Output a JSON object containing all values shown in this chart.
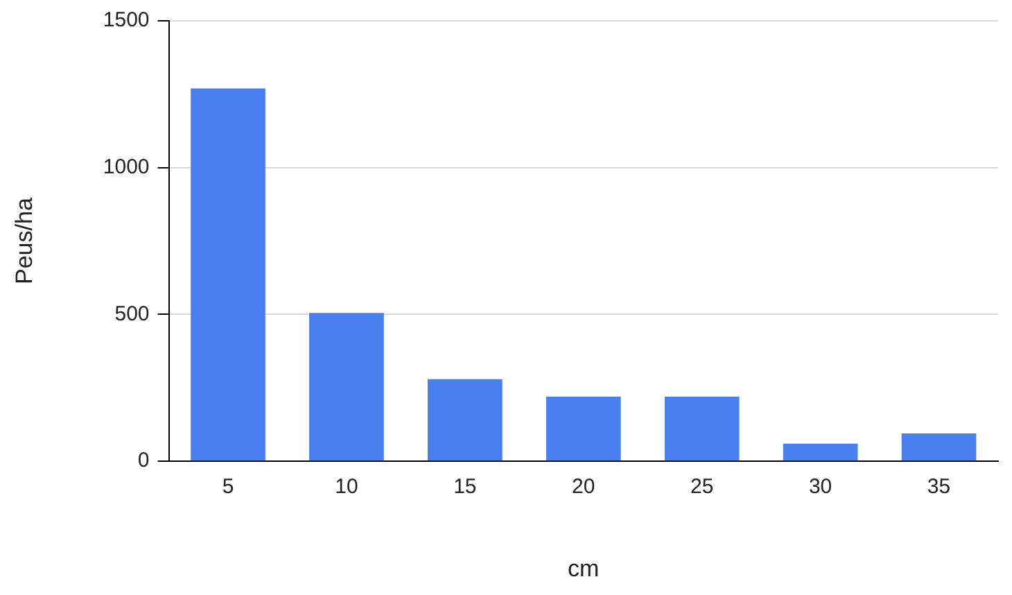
{
  "chart_data": {
    "type": "bar",
    "xlabel": "cm",
    "ylabel": "Peus/ha",
    "categories": [
      "5",
      "10",
      "15",
      "20",
      "25",
      "30",
      "35"
    ],
    "values": [
      1270,
      505,
      280,
      220,
      220,
      60,
      95
    ],
    "color": "#4a7ff0",
    "ylim": [
      0,
      1500
    ],
    "yticks": [
      0,
      500,
      1000,
      1500
    ],
    "grid": "y",
    "legend": false
  }
}
